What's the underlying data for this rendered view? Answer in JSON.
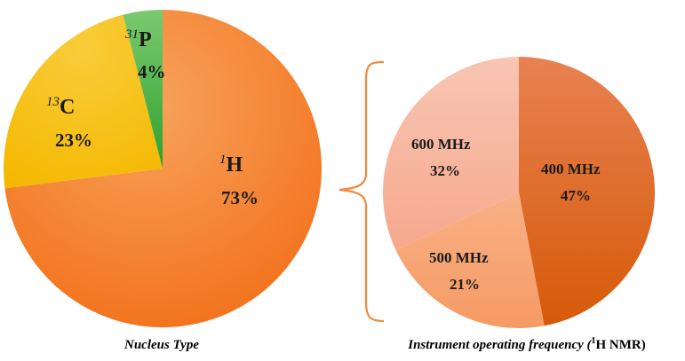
{
  "chart_data": [
    {
      "type": "pie",
      "caption": "Nucleus Type",
      "slices": [
        {
          "sup": "1",
          "label": "H",
          "value": 73,
          "value_label": "73%",
          "color": "#F47F24"
        },
        {
          "sup": "13",
          "label": "C",
          "value": 23,
          "value_label": "23%",
          "color": "#F6BE12"
        },
        {
          "sup": "31",
          "label": "P",
          "value": 4,
          "value_label": "4%",
          "color": "#3FAE3A"
        }
      ]
    },
    {
      "type": "pie",
      "caption_prefix": "Instrument operating frequency (",
      "caption_sup": "1",
      "caption_suffix": "H NMR)",
      "slices": [
        {
          "label": "400 MHz",
          "value": 47,
          "value_label": "47%",
          "color": "#DD661E"
        },
        {
          "label": "500 MHz",
          "value": 21,
          "value_label": "21%",
          "color": "#F7A475"
        },
        {
          "label": "600 MHz",
          "value": 32,
          "value_label": "32%",
          "color": "#F6B7A0"
        }
      ]
    }
  ],
  "connector_color": "#F08A3C"
}
